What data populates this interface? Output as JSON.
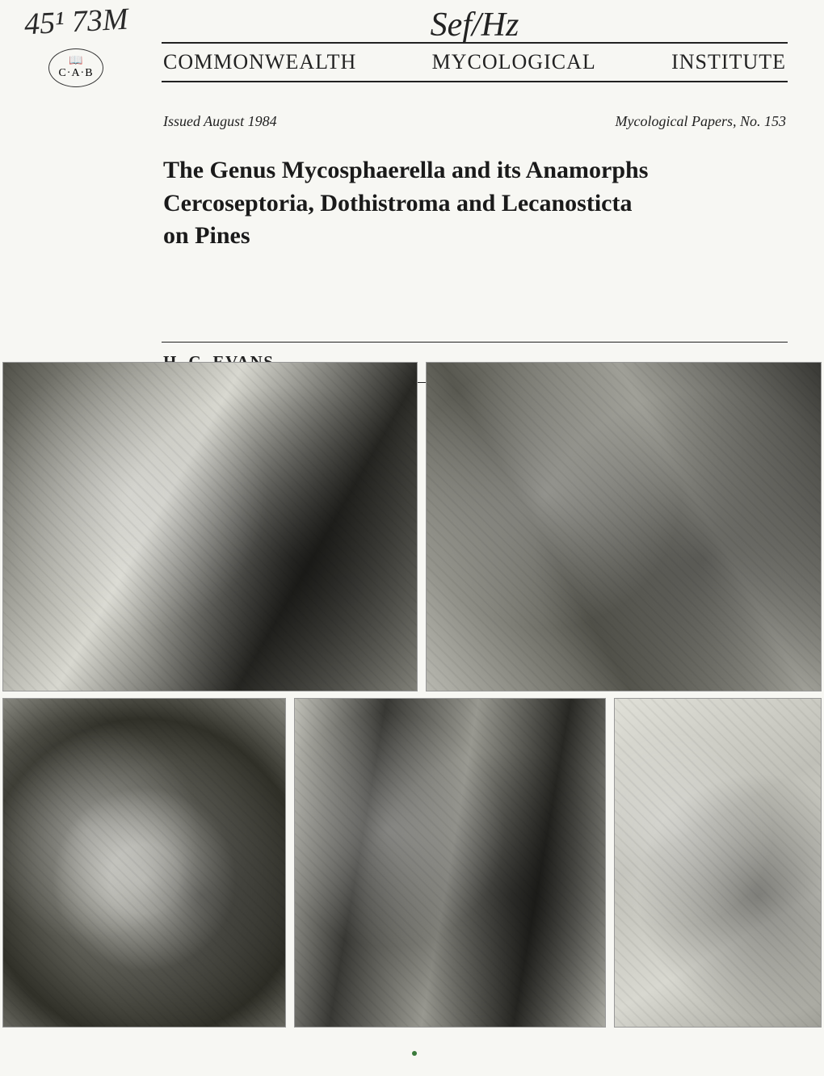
{
  "handwritten_note": "45¹ 73M",
  "logo": {
    "abbreviation": "C·A·B",
    "icon_name": "book-icon"
  },
  "handwritten_signature": "Sef/Hz",
  "institute": {
    "word1": "COMMONWEALTH",
    "word2": "MYCOLOGICAL",
    "word3": "INSTITUTE"
  },
  "meta": {
    "issued": "Issued August 1984",
    "series": "Mycological Papers, No. 153"
  },
  "title": {
    "line1": "The Genus Mycosphaerella and its Anamorphs",
    "line2": "Cercoseptoria, Dothistroma and Lecanosticta",
    "line3": "on Pines"
  },
  "author": "H. C. EVANS",
  "figures": {
    "row1": [
      {
        "label": "micrograph-top-left",
        "description": "fungal structure micrograph"
      },
      {
        "label": "micrograph-top-right",
        "description": "spore cluster micrograph"
      }
    ],
    "row2": [
      {
        "label": "micrograph-bottom-left",
        "description": "cellular cross-section"
      },
      {
        "label": "micrograph-bottom-center",
        "description": "tissue section micrograph"
      },
      {
        "label": "micrograph-bottom-right",
        "description": "conidia line drawing"
      }
    ]
  },
  "colors": {
    "background": "#f7f7f3",
    "text": "#222222",
    "rule": "#222222"
  },
  "typography": {
    "institute_fontsize": 26,
    "title_fontsize": 30,
    "meta_fontsize": 18,
    "author_fontsize": 21
  }
}
